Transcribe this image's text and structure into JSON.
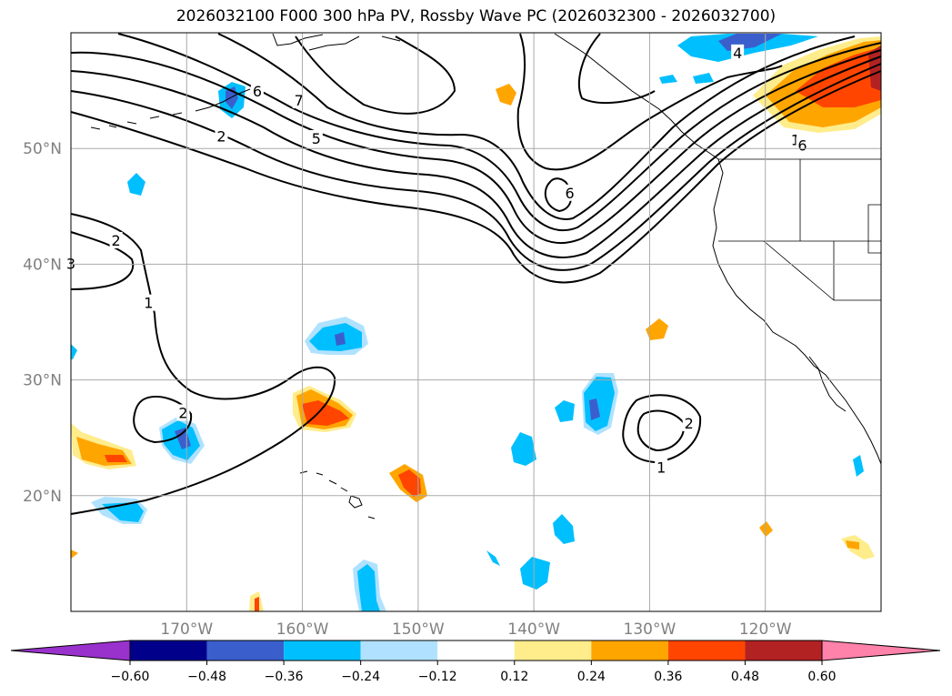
{
  "figure": {
    "title": "2026032100 F000 300 hPa PV, Rossby Wave PC (2026032300 - 2026032700)"
  },
  "map": {
    "projection": "equirectangular",
    "lon_range": [
      -180,
      -110
    ],
    "lat_range": [
      10,
      60
    ],
    "gridlines": true,
    "lat_ticks": [
      {
        "value": 20,
        "label": "20°N"
      },
      {
        "value": 30,
        "label": "30°N"
      },
      {
        "value": 40,
        "label": "40°N"
      },
      {
        "value": 50,
        "label": "50°N"
      }
    ],
    "lon_ticks": [
      {
        "value": -170,
        "label": "170°W"
      },
      {
        "value": -160,
        "label": "160°W"
      },
      {
        "value": -150,
        "label": "150°W"
      },
      {
        "value": -140,
        "label": "140°W"
      },
      {
        "value": -130,
        "label": "130°W"
      },
      {
        "value": -120,
        "label": "120°W"
      }
    ],
    "contour_labels": [
      {
        "text": "2",
        "lon": -167,
        "lat": 51.0
      },
      {
        "text": "5",
        "lon": -158.8,
        "lat": 50.8
      },
      {
        "text": "7",
        "lon": -160.3,
        "lat": 54.1
      },
      {
        "text": "6",
        "lon": -163.9,
        "lat": 54.9
      },
      {
        "text": "4",
        "lon": -122.4,
        "lat": 58.2
      },
      {
        "text": "1",
        "lon": -117.4,
        "lat": 50.7
      },
      {
        "text": "6",
        "lon": -116.8,
        "lat": 50.2
      },
      {
        "text": "6",
        "lon": -136.9,
        "lat": 46.1
      },
      {
        "text": "2",
        "lon": -176.1,
        "lat": 42.0
      },
      {
        "text": "3",
        "lon": -180,
        "lat": 40.0
      },
      {
        "text": "1",
        "lon": -173.3,
        "lat": 36.6
      },
      {
        "text": "2",
        "lon": -170.3,
        "lat": 27.1
      },
      {
        "text": "2",
        "lon": -126.6,
        "lat": 26.2
      },
      {
        "text": "1",
        "lon": -129.0,
        "lat": 22.4
      }
    ]
  },
  "colorbar": {
    "levels": [
      "−0.60",
      "−0.48",
      "−0.36",
      "−0.24",
      "−0.12",
      "0.12",
      "0.24",
      "0.36",
      "0.48",
      "0.60"
    ],
    "colors": [
      "#9932cc",
      "#00008b",
      "#3a5fcd",
      "#00bfff",
      "#b0e2ff",
      "#ffffff",
      "#ffec8b",
      "#ffa500",
      "#ff4500",
      "#b22222",
      "#ff82ab"
    ],
    "extend": "both"
  }
}
